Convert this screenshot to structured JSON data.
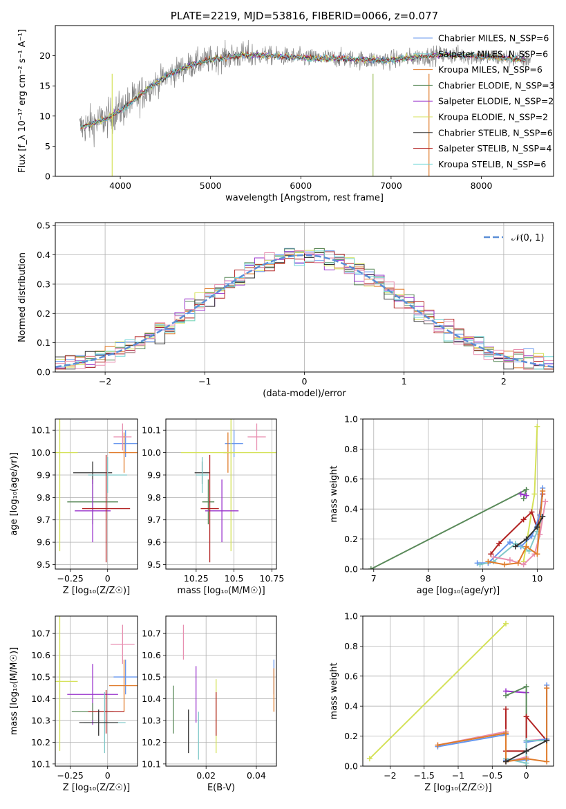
{
  "chart_data": [
    {
      "id": "spectrum",
      "type": "line",
      "title": "PLATE=2219, MJD=53816, FIBERID=0066, z=0.077",
      "xlabel": "wavelength [Angstrom, rest frame]",
      "ylabel": "Flux [f_λ 10⁻¹⁷ erg cm⁻² s⁻¹ A⁻¹]",
      "xlim": [
        3280,
        8800
      ],
      "ylim": [
        0,
        25
      ],
      "xticks": [
        4000,
        5000,
        6000,
        7000,
        8000
      ],
      "yticks": [
        0,
        5,
        10,
        15,
        20
      ],
      "legend_placement": "upper-right",
      "series": [
        {
          "name": "Chabrier MILES, N_SSP=6",
          "color": "#6495ed"
        },
        {
          "name": "Salpeter MILES, N_SSP=6",
          "color": "#7fc8c8"
        },
        {
          "name": "Kroupa MILES, N_SSP=6",
          "color": "#e07b2a"
        },
        {
          "name": "Chabrier ELODIE, N_SSP=3",
          "color": "#5a8a5a"
        },
        {
          "name": "Salpeter ELODIE, N_SSP=2",
          "color": "#9932cc"
        },
        {
          "name": "Kroupa ELODIE, N_SSP=2",
          "color": "#d4e157"
        },
        {
          "name": "Chabrier STELIB, N_SSP=6",
          "color": "#333333"
        },
        {
          "name": "Salpeter STELIB, N_SSP=4",
          "color": "#b22222"
        },
        {
          "name": "Kroupa STELIB, N_SSP=6",
          "color": "#70d6d6"
        }
      ],
      "data_color": "#808080",
      "continuum_x": [
        3550,
        3700,
        3850,
        3950,
        4100,
        4300,
        4500,
        4700,
        4900,
        5100,
        5300,
        5500,
        5800,
        6100,
        6400,
        6700,
        7000,
        7300,
        7600,
        7900,
        8200,
        8500
      ],
      "continuum_y": [
        8.0,
        8.8,
        9.5,
        10.5,
        12.0,
        14.5,
        16.5,
        18.0,
        19.0,
        19.6,
        20.0,
        20.1,
        19.9,
        19.6,
        19.6,
        19.3,
        19.3,
        19.8,
        20.2,
        20.0,
        19.7,
        19.4
      ]
    },
    {
      "id": "residuals",
      "type": "line",
      "xlabel": "(data-model)/error",
      "ylabel": "Normed distribution",
      "xlim": [
        -2.5,
        2.5
      ],
      "ylim": [
        0,
        0.51
      ],
      "xticks": [
        -2,
        -1,
        0,
        1,
        2
      ],
      "yticks": [
        0.0,
        0.1,
        0.2,
        0.3,
        0.4,
        0.5
      ],
      "grid": true,
      "legend_placement": "upper-right",
      "reference": {
        "name": "𝒩(0, 1)",
        "color": "#5b8ed6"
      }
    },
    {
      "id": "age_vs_Z",
      "type": "scatter",
      "xlabel": "Z [log₁₀(Z/Z☉)]",
      "ylabel": "age  [log₁₀(age/yr)]",
      "xlim": [
        -0.35,
        0.2
      ],
      "ylim": [
        9.48,
        10.15
      ],
      "xticks": [
        -0.25,
        0.0
      ],
      "yticks": [
        9.5,
        9.6,
        9.7,
        9.8,
        9.9,
        10.0,
        10.1
      ],
      "grid": true,
      "points": [
        {
          "x": 0.12,
          "y": 10.04,
          "xerr": 0.08,
          "yerr": 0.06,
          "color": "#6495ed"
        },
        {
          "x": 0.1,
          "y": 10.07,
          "xerr": 0.06,
          "yerr": 0.06,
          "color": "#e88fb0"
        },
        {
          "x": 0.11,
          "y": 10.0,
          "xerr": 0.1,
          "yerr": 0.09,
          "color": "#e07b2a"
        },
        {
          "x": -0.32,
          "y": 10.0,
          "xerr": 0.12,
          "yerr": 0.44,
          "color": "#d4e157"
        },
        {
          "x": -0.1,
          "y": 9.91,
          "xerr": 0.13,
          "yerr": 0.05,
          "color": "#333333"
        },
        {
          "x": 0.0,
          "y": 9.9,
          "xerr": 0.13,
          "yerr": 0.08,
          "color": "#7fc8c8"
        },
        {
          "x": -0.1,
          "y": 9.78,
          "xerr": 0.17,
          "yerr": 0.1,
          "color": "#5a8a5a"
        },
        {
          "x": -0.1,
          "y": 9.74,
          "xerr": 0.12,
          "yerr": 0.14,
          "color": "#9932cc"
        },
        {
          "x": -0.01,
          "y": 9.75,
          "xerr": 0.16,
          "yerr": 0.24,
          "color": "#b22222"
        }
      ]
    },
    {
      "id": "age_vs_mass",
      "type": "scatter",
      "xlabel": "mass [log₁₀(M/M☉)]",
      "xlim": [
        10.05,
        10.78
      ],
      "ylim": [
        9.48,
        10.15
      ],
      "xticks": [
        10.25,
        10.5,
        10.75
      ],
      "yticks": [
        9.5,
        9.6,
        9.7,
        9.8,
        9.9,
        10.0,
        10.1
      ],
      "grid": true,
      "points": [
        {
          "x": 10.5,
          "y": 10.04,
          "xerr": 0.06,
          "yerr": 0.06,
          "color": "#6495ed"
        },
        {
          "x": 10.65,
          "y": 10.07,
          "xerr": 0.06,
          "yerr": 0.06,
          "color": "#e88fb0"
        },
        {
          "x": 10.46,
          "y": 10.0,
          "xerr": 0.03,
          "yerr": 0.09,
          "color": "#e07b2a"
        },
        {
          "x": 10.48,
          "y": 10.0,
          "xerr": 0.33,
          "yerr": 0.44,
          "color": "#d4e157"
        },
        {
          "x": 10.29,
          "y": 9.91,
          "xerr": 0.05,
          "yerr": 0.05,
          "color": "#333333"
        },
        {
          "x": 10.29,
          "y": 9.9,
          "xerr": 0.04,
          "yerr": 0.08,
          "color": "#7fc8c8"
        },
        {
          "x": 10.33,
          "y": 9.78,
          "xerr": 0.04,
          "yerr": 0.1,
          "color": "#5a8a5a"
        },
        {
          "x": 10.42,
          "y": 9.74,
          "xerr": 0.11,
          "yerr": 0.14,
          "color": "#9932cc"
        },
        {
          "x": 10.34,
          "y": 9.75,
          "xerr": 0.06,
          "yerr": 0.24,
          "color": "#b22222"
        }
      ]
    },
    {
      "id": "massweight_vs_age",
      "type": "line",
      "xlabel": "age  [log₁₀(age/yr)]",
      "ylabel": "mass weight",
      "xlim": [
        6.8,
        10.3
      ],
      "ylim": [
        0.0,
        1.0
      ],
      "xticks": [
        7,
        8,
        9,
        10
      ],
      "yticks": [
        0.0,
        0.2,
        0.4,
        0.6,
        0.8,
        1.0
      ],
      "grid": true,
      "series": [
        {
          "color": "#5a8a5a",
          "x": [
            6.95,
            9.8,
            9.75
          ],
          "y": [
            0.0,
            0.53,
            0.47
          ]
        },
        {
          "color": "#d4e157",
          "x": [
            9.75,
            9.95,
            10.0
          ],
          "y": [
            0.05,
            0.5,
            0.95
          ]
        },
        {
          "color": "#9932cc",
          "x": [
            9.7,
            9.8
          ],
          "y": [
            0.5,
            0.49
          ]
        },
        {
          "color": "#b22222",
          "x": [
            9.15,
            9.3,
            9.75,
            9.9,
            10.0,
            10.1
          ],
          "y": [
            0.1,
            0.17,
            0.33,
            0.38,
            0.27,
            0.5
          ]
        },
        {
          "color": "#6495ed",
          "x": [
            8.9,
            9.1,
            9.5,
            9.7,
            9.9,
            10.05,
            10.1
          ],
          "y": [
            0.04,
            0.04,
            0.18,
            0.15,
            0.22,
            0.36,
            0.54
          ]
        },
        {
          "color": "#7fc8c8",
          "x": [
            8.95,
            9.2,
            9.6,
            9.85,
            10.0,
            10.1
          ],
          "y": [
            0.03,
            0.05,
            0.17,
            0.12,
            0.25,
            0.35
          ]
        },
        {
          "color": "#e88fb0",
          "x": [
            9.2,
            9.5,
            9.75,
            9.95,
            10.05,
            10.15
          ],
          "y": [
            0.08,
            0.06,
            0.03,
            0.1,
            0.23,
            0.45
          ]
        },
        {
          "color": "#e07b2a",
          "x": [
            9.1,
            9.4,
            9.65,
            9.8,
            10.0,
            10.1
          ],
          "y": [
            0.05,
            0.03,
            0.04,
            0.15,
            0.1,
            0.52
          ]
        },
        {
          "color": "#333333",
          "x": [
            9.6,
            9.8,
            10.0,
            10.1
          ],
          "y": [
            0.15,
            0.2,
            0.28,
            0.35
          ]
        }
      ]
    },
    {
      "id": "mass_vs_Z",
      "type": "scatter",
      "xlabel": "Z [log₁₀(Z/Z☉)]",
      "ylabel": "mass [log₁₀(M/M☉)]",
      "xlim": [
        -0.35,
        0.2
      ],
      "ylim": [
        10.09,
        10.78
      ],
      "xticks": [
        -0.25,
        0.0
      ],
      "yticks": [
        10.1,
        10.2,
        10.3,
        10.4,
        10.5,
        10.6,
        10.7
      ],
      "grid": true,
      "points": [
        {
          "x": 0.1,
          "y": 10.65,
          "xerr": 0.08,
          "yerr": 0.09,
          "color": "#e88fb0"
        },
        {
          "x": 0.12,
          "y": 10.5,
          "xerr": 0.08,
          "yerr": 0.08,
          "color": "#6495ed"
        },
        {
          "x": 0.11,
          "y": 10.46,
          "xerr": 0.1,
          "yerr": 0.12,
          "color": "#e07b2a"
        },
        {
          "x": -0.32,
          "y": 10.48,
          "xerr": 0.12,
          "yerr": 0.32,
          "color": "#d4e157"
        },
        {
          "x": -0.1,
          "y": 10.42,
          "xerr": 0.17,
          "yerr": 0.14,
          "color": "#9932cc"
        },
        {
          "x": -0.1,
          "y": 10.34,
          "xerr": 0.14,
          "yerr": 0.04,
          "color": "#5a8a5a"
        },
        {
          "x": -0.01,
          "y": 10.34,
          "xerr": 0.12,
          "yerr": 0.1,
          "color": "#b22222"
        },
        {
          "x": -0.02,
          "y": 10.29,
          "xerr": 0.14,
          "yerr": 0.14,
          "color": "#7fc8c8"
        },
        {
          "x": -0.06,
          "y": 10.29,
          "xerr": 0.13,
          "yerr": 0.06,
          "color": "#333333"
        }
      ]
    },
    {
      "id": "mass_vs_ebv",
      "type": "scatter",
      "xlabel": "E(B-V)",
      "xlim": [
        0.004,
        0.048
      ],
      "ylim": [
        10.09,
        10.78
      ],
      "xticks": [
        0.02,
        0.04
      ],
      "yticks": [
        10.1,
        10.2,
        10.3,
        10.4,
        10.5,
        10.6,
        10.7
      ],
      "grid": true,
      "points": [
        {
          "x": 0.011,
          "y": 10.66,
          "yerr": 0.08,
          "color": "#e88fb0"
        },
        {
          "x": 0.047,
          "y": 10.5,
          "yerr": 0.08,
          "color": "#6495ed"
        },
        {
          "x": 0.047,
          "y": 10.44,
          "yerr": 0.1,
          "color": "#e07b2a"
        },
        {
          "x": 0.024,
          "y": 10.32,
          "yerr": 0.17,
          "color": "#d4e157"
        },
        {
          "x": 0.016,
          "y": 10.42,
          "yerr": 0.13,
          "color": "#9932cc"
        },
        {
          "x": 0.007,
          "y": 10.35,
          "yerr": 0.11,
          "color": "#5a8a5a"
        },
        {
          "x": 0.024,
          "y": 10.33,
          "yerr": 0.1,
          "color": "#b22222"
        },
        {
          "x": 0.017,
          "y": 10.23,
          "yerr": 0.11,
          "color": "#7fc8c8"
        },
        {
          "x": 0.013,
          "y": 10.25,
          "yerr": 0.1,
          "color": "#333333"
        }
      ]
    },
    {
      "id": "massweight_vs_Z",
      "type": "line",
      "xlabel": "Z [log₁₀(Z/Z☉)]",
      "ylabel": "mass weight",
      "xlim": [
        -2.4,
        0.4
      ],
      "ylim": [
        0.0,
        1.0
      ],
      "xticks": [
        -2.0,
        -1.5,
        -1.0,
        -0.5,
        0.0
      ],
      "yticks": [
        0.0,
        0.2,
        0.4,
        0.6,
        0.8,
        1.0
      ],
      "grid": true,
      "series": [
        {
          "color": "#d4e157",
          "x": [
            -2.3,
            -0.3
          ],
          "y": [
            0.05,
            0.95
          ]
        },
        {
          "color": "#9932cc",
          "x": [
            -0.3,
            0.0
          ],
          "y": [
            0.5,
            0.49
          ]
        },
        {
          "color": "#5a8a5a",
          "x": [
            -0.3,
            0.0,
            0.0
          ],
          "y": [
            0.47,
            0.53,
            0.0
          ]
        },
        {
          "color": "#b22222",
          "x": [
            -0.3,
            -0.3,
            0.0,
            0.0,
            0.3
          ],
          "y": [
            0.38,
            0.1,
            0.1,
            0.33,
            0.17
          ]
        },
        {
          "color": "#e88fb0",
          "x": [
            -1.3,
            -0.3,
            -0.3,
            0.0,
            0.0,
            0.3
          ],
          "y": [
            0.14,
            0.23,
            0.03,
            0.06,
            0.17,
            0.18
          ]
        },
        {
          "color": "#6495ed",
          "x": [
            -1.3,
            -0.3,
            -0.3,
            0.0,
            0.0,
            0.3,
            0.3
          ],
          "y": [
            0.13,
            0.21,
            0.04,
            0.04,
            0.16,
            0.18,
            0.54
          ]
        },
        {
          "color": "#7fc8c8",
          "x": [
            -0.3,
            -0.3,
            0.0,
            0.0,
            0.3
          ],
          "y": [
            0.22,
            0.05,
            0.02,
            0.17,
            0.17
          ]
        },
        {
          "color": "#e07b2a",
          "x": [
            -1.3,
            -0.3,
            -0.3,
            0.0,
            0.3,
            0.3
          ],
          "y": [
            0.14,
            0.22,
            0.03,
            0.05,
            0.03,
            0.52
          ]
        },
        {
          "color": "#333333",
          "x": [
            -0.3,
            0.0,
            0.3
          ],
          "y": [
            0.03,
            0.1,
            0.17
          ]
        }
      ]
    }
  ]
}
